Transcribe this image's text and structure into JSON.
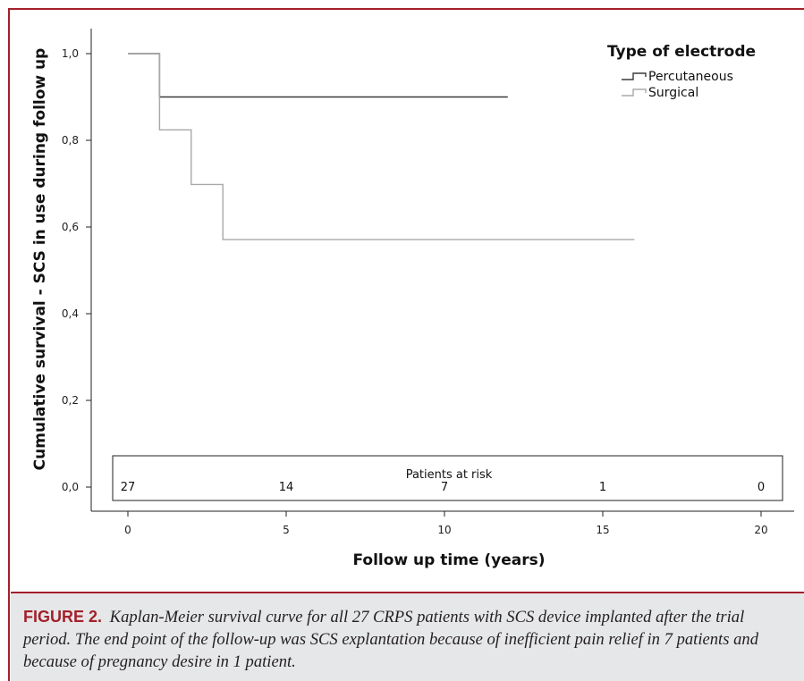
{
  "chart_data": {
    "type": "line",
    "subtype": "kaplan-meier step",
    "xlabel": "Follow up time (years)",
    "ylabel": "Cumulative survival - SCS in use during follow up",
    "xlim": [
      0,
      20
    ],
    "ylim": [
      0.0,
      1.0
    ],
    "x_ticks": [
      "0",
      "5",
      "10",
      "15",
      "20"
    ],
    "x_tick_values": [
      0,
      5,
      10,
      15,
      20
    ],
    "y_ticks": [
      "0,0",
      "0,2",
      "0,4",
      "0,6",
      "0,8",
      "1,0"
    ],
    "y_tick_values": [
      0.0,
      0.2,
      0.4,
      0.6,
      0.8,
      1.0
    ],
    "grid": false,
    "legend": {
      "title": "Type of electrode",
      "position": "top-right"
    },
    "series": [
      {
        "name": "Percutaneous",
        "color": "#3a3a3a",
        "steps": [
          [
            0,
            1.0
          ],
          [
            1,
            0.9
          ],
          [
            12,
            0.9
          ]
        ]
      },
      {
        "name": "Surgical",
        "color": "#a8a8a8",
        "steps": [
          [
            0,
            1.0
          ],
          [
            1,
            0.824
          ],
          [
            2,
            0.698
          ],
          [
            3,
            0.571
          ],
          [
            16,
            0.571
          ]
        ]
      }
    ],
    "risk_table": {
      "title": "Patients at risk",
      "times": [
        0,
        5,
        10,
        15,
        20
      ],
      "counts": [
        "27",
        "14",
        "7",
        "1",
        "0"
      ]
    }
  },
  "caption": {
    "label": "FIGURE 2.",
    "text": "Kaplan-Meier survival curve for all 27 CRPS patients with SCS device implanted after the trial period. The end point of the follow-up was SCS explantation because of inefficient pain relief in 7 patients and because of pregnancy desire in 1 patient."
  },
  "colors": {
    "accent": "#a3202a",
    "caption_bg": "#e6e7e8"
  }
}
